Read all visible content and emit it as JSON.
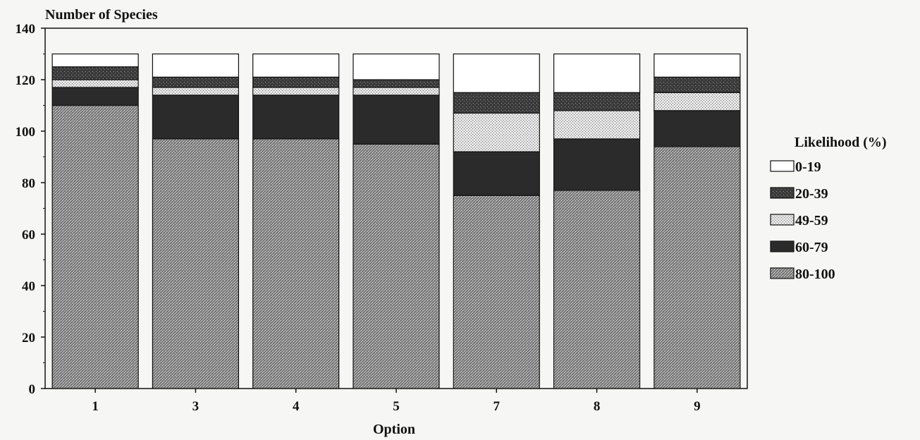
{
  "chart_data": {
    "type": "bar",
    "stacked": true,
    "ylabel": "Number of Species",
    "xlabel": "Option",
    "ylim": [
      0,
      140
    ],
    "yticks": [
      0,
      20,
      40,
      60,
      80,
      100,
      120,
      140
    ],
    "categories": [
      "1",
      "3",
      "4",
      "5",
      "7",
      "8",
      "9"
    ],
    "legend_title": "Likelihood (%)",
    "legend_position": "right",
    "series": [
      {
        "name": "80-100",
        "pattern": "dense-crosshatch",
        "values": [
          110,
          97,
          97,
          95,
          75,
          77,
          94
        ]
      },
      {
        "name": "60-79",
        "pattern": "dark",
        "values": [
          7,
          17,
          17,
          19,
          17,
          20,
          14
        ]
      },
      {
        "name": "49-59",
        "pattern": "light-dots",
        "values": [
          3,
          3,
          3,
          3,
          15,
          11,
          7
        ]
      },
      {
        "name": "20-39",
        "pattern": "dark-speckled",
        "values": [
          5,
          4,
          4,
          3,
          8,
          7,
          6
        ]
      },
      {
        "name": "0-19",
        "pattern": "white",
        "values": [
          5,
          9,
          9,
          10,
          15,
          15,
          9
        ]
      }
    ]
  },
  "colors": {
    "outline": "#111111",
    "dark_fill": "#2b2b2b",
    "hatch_fill": "#777777",
    "dots_fill": "#dcdcdc",
    "white_fill": "#ffffff"
  }
}
